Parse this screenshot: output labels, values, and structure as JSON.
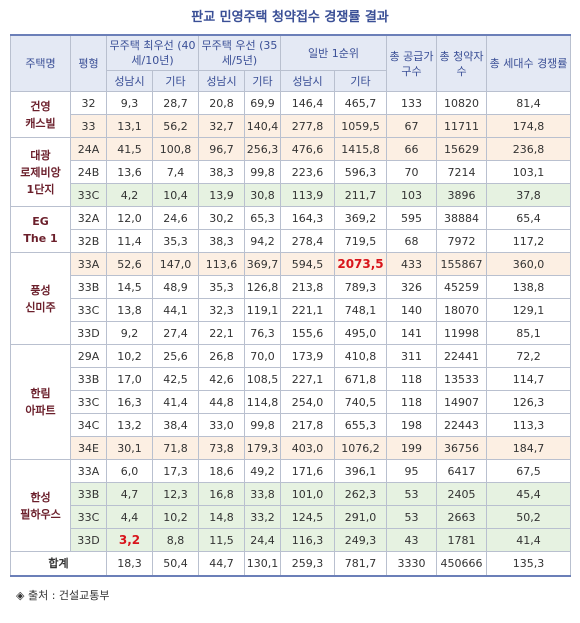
{
  "title": "판교 민영주택 청약접수 경쟁률 결과",
  "headers": {
    "name": "주택명",
    "type": "평형",
    "g1": "무주택 최우선 (40세/10년)",
    "g2": "무주택 우선 (35세/5년)",
    "g3": "일반 1순위",
    "total_supply": "총 공급가구수",
    "total_applicants": "총 청약자수",
    "total_ratio": "총 세대수 경쟁률",
    "sub_a": "성남시",
    "sub_b": "기타"
  },
  "groups": [
    {
      "name": "건영\n캐스빌",
      "rows": [
        {
          "type": "32",
          "a1": "9,3",
          "a2": "28,7",
          "b1": "20,8",
          "b2": "69,9",
          "c1": "146,4",
          "c2": "465,7",
          "supply": "133",
          "applicants": "10820",
          "ratio": "81,4",
          "shade": "w"
        },
        {
          "type": "33",
          "a1": "13,1",
          "a2": "56,2",
          "b1": "32,7",
          "b2": "140,4",
          "c1": "277,8",
          "c2": "1059,5",
          "supply": "67",
          "applicants": "11711",
          "ratio": "174,8",
          "shade": "o"
        }
      ]
    },
    {
      "name": "대광\n로제비앙\n1단지",
      "rows": [
        {
          "type": "24A",
          "a1": "41,5",
          "a2": "100,8",
          "b1": "96,7",
          "b2": "256,3",
          "c1": "476,6",
          "c2": "1415,8",
          "supply": "66",
          "applicants": "15629",
          "ratio": "236,8",
          "shade": "o"
        },
        {
          "type": "24B",
          "a1": "13,6",
          "a2": "7,4",
          "b1": "38,3",
          "b2": "99,8",
          "c1": "223,6",
          "c2": "596,3",
          "supply": "70",
          "applicants": "7214",
          "ratio": "103,1",
          "shade": "w"
        },
        {
          "type": "33C",
          "a1": "4,2",
          "a2": "10,4",
          "b1": "13,9",
          "b2": "30,8",
          "c1": "113,9",
          "c2": "211,7",
          "supply": "103",
          "applicants": "3896",
          "ratio": "37,8",
          "shade": "g"
        }
      ]
    },
    {
      "name": "EG\nThe 1",
      "rows": [
        {
          "type": "32A",
          "a1": "12,0",
          "a2": "24,6",
          "b1": "30,2",
          "b2": "65,3",
          "c1": "164,3",
          "c2": "369,2",
          "supply": "595",
          "applicants": "38884",
          "ratio": "65,4",
          "shade": "w"
        },
        {
          "type": "32B",
          "a1": "11,4",
          "a2": "35,3",
          "b1": "38,3",
          "b2": "94,2",
          "c1": "278,4",
          "c2": "719,5",
          "supply": "68",
          "applicants": "7972",
          "ratio": "117,2",
          "shade": "w"
        }
      ]
    },
    {
      "name": "풍성\n신미주",
      "rows": [
        {
          "type": "33A",
          "a1": "52,6",
          "a2": "147,0",
          "b1": "113,6",
          "b2": "369,7",
          "c1": "594,5",
          "c2": "2073,5",
          "supply": "433",
          "applicants": "155867",
          "ratio": "360,0",
          "shade": "o",
          "hl": "c2"
        },
        {
          "type": "33B",
          "a1": "14,5",
          "a2": "48,9",
          "b1": "35,3",
          "b2": "126,8",
          "c1": "213,8",
          "c2": "789,3",
          "supply": "326",
          "applicants": "45259",
          "ratio": "138,8",
          "shade": "w"
        },
        {
          "type": "33C",
          "a1": "13,8",
          "a2": "44,1",
          "b1": "32,3",
          "b2": "119,1",
          "c1": "221,1",
          "c2": "748,1",
          "supply": "140",
          "applicants": "18070",
          "ratio": "129,1",
          "shade": "w"
        },
        {
          "type": "33D",
          "a1": "9,2",
          "a2": "27,4",
          "b1": "22,1",
          "b2": "76,3",
          "c1": "155,6",
          "c2": "495,0",
          "supply": "141",
          "applicants": "11998",
          "ratio": "85,1",
          "shade": "w"
        }
      ]
    },
    {
      "name": "한림\n아파트",
      "rows": [
        {
          "type": "29A",
          "a1": "10,2",
          "a2": "25,6",
          "b1": "26,8",
          "b2": "70,0",
          "c1": "173,9",
          "c2": "410,8",
          "supply": "311",
          "applicants": "22441",
          "ratio": "72,2",
          "shade": "w"
        },
        {
          "type": "33B",
          "a1": "17,0",
          "a2": "42,5",
          "b1": "42,6",
          "b2": "108,5",
          "c1": "227,1",
          "c2": "671,8",
          "supply": "118",
          "applicants": "13533",
          "ratio": "114,7",
          "shade": "w"
        },
        {
          "type": "33C",
          "a1": "16,3",
          "a2": "41,4",
          "b1": "44,8",
          "b2": "114,8",
          "c1": "254,0",
          "c2": "740,5",
          "supply": "118",
          "applicants": "14907",
          "ratio": "126,3",
          "shade": "w"
        },
        {
          "type": "34C",
          "a1": "13,2",
          "a2": "38,4",
          "b1": "33,0",
          "b2": "99,8",
          "c1": "217,8",
          "c2": "655,3",
          "supply": "198",
          "applicants": "22443",
          "ratio": "113,3",
          "shade": "w"
        },
        {
          "type": "34E",
          "a1": "30,1",
          "a2": "71,8",
          "b1": "73,8",
          "b2": "179,3",
          "c1": "403,0",
          "c2": "1076,2",
          "supply": "199",
          "applicants": "36756",
          "ratio": "184,7",
          "shade": "o"
        }
      ]
    },
    {
      "name": "한성\n필하우스",
      "rows": [
        {
          "type": "33A",
          "a1": "6,0",
          "a2": "17,3",
          "b1": "18,6",
          "b2": "49,2",
          "c1": "171,6",
          "c2": "396,1",
          "supply": "95",
          "applicants": "6417",
          "ratio": "67,5",
          "shade": "w"
        },
        {
          "type": "33B",
          "a1": "4,7",
          "a2": "12,3",
          "b1": "16,8",
          "b2": "33,8",
          "c1": "101,0",
          "c2": "262,3",
          "supply": "53",
          "applicants": "2405",
          "ratio": "45,4",
          "shade": "g"
        },
        {
          "type": "33C",
          "a1": "4,4",
          "a2": "10,2",
          "b1": "14,8",
          "b2": "33,2",
          "c1": "124,5",
          "c2": "291,0",
          "supply": "53",
          "applicants": "2663",
          "ratio": "50,2",
          "shade": "g"
        },
        {
          "type": "33D",
          "a1": "3,2",
          "a2": "8,8",
          "b1": "11,5",
          "b2": "24,4",
          "c1": "116,3",
          "c2": "249,3",
          "supply": "43",
          "applicants": "1781",
          "ratio": "41,4",
          "shade": "g",
          "hl": "a1"
        }
      ]
    }
  ],
  "total": {
    "label": "합계",
    "a1": "18,3",
    "a2": "50,4",
    "b1": "44,7",
    "b2": "130,1",
    "c1": "259,3",
    "c2": "781,7",
    "supply": "3330",
    "applicants": "450666",
    "ratio": "135,3"
  },
  "source": "◈ 출처 : 건설교통부"
}
